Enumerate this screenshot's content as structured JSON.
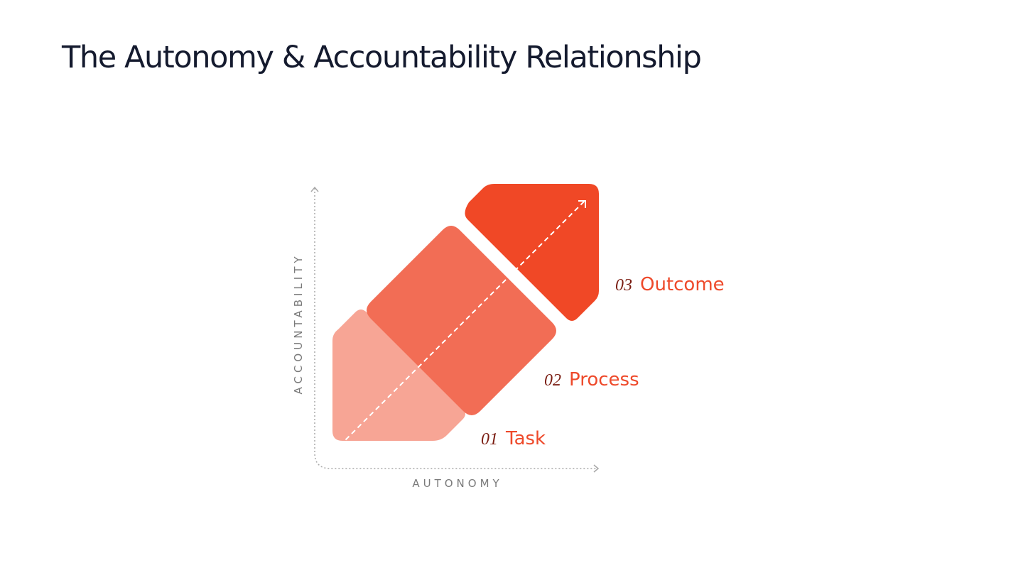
{
  "title": "The Autonomy & Accountability Relationship",
  "axes": {
    "x_label": "AUTONOMY",
    "y_label": "ACCOUNTABILITY"
  },
  "stages": [
    {
      "number": "01",
      "name": "Task",
      "color": "#f7a595"
    },
    {
      "number": "02",
      "name": "Process",
      "color": "#f26d55"
    },
    {
      "number": "03",
      "name": "Outcome",
      "color": "#f04826"
    }
  ],
  "colors": {
    "title": "#141a2e",
    "axis": "#a8a8a8",
    "number": "#7a1d12",
    "name": "#ee4a2b"
  }
}
